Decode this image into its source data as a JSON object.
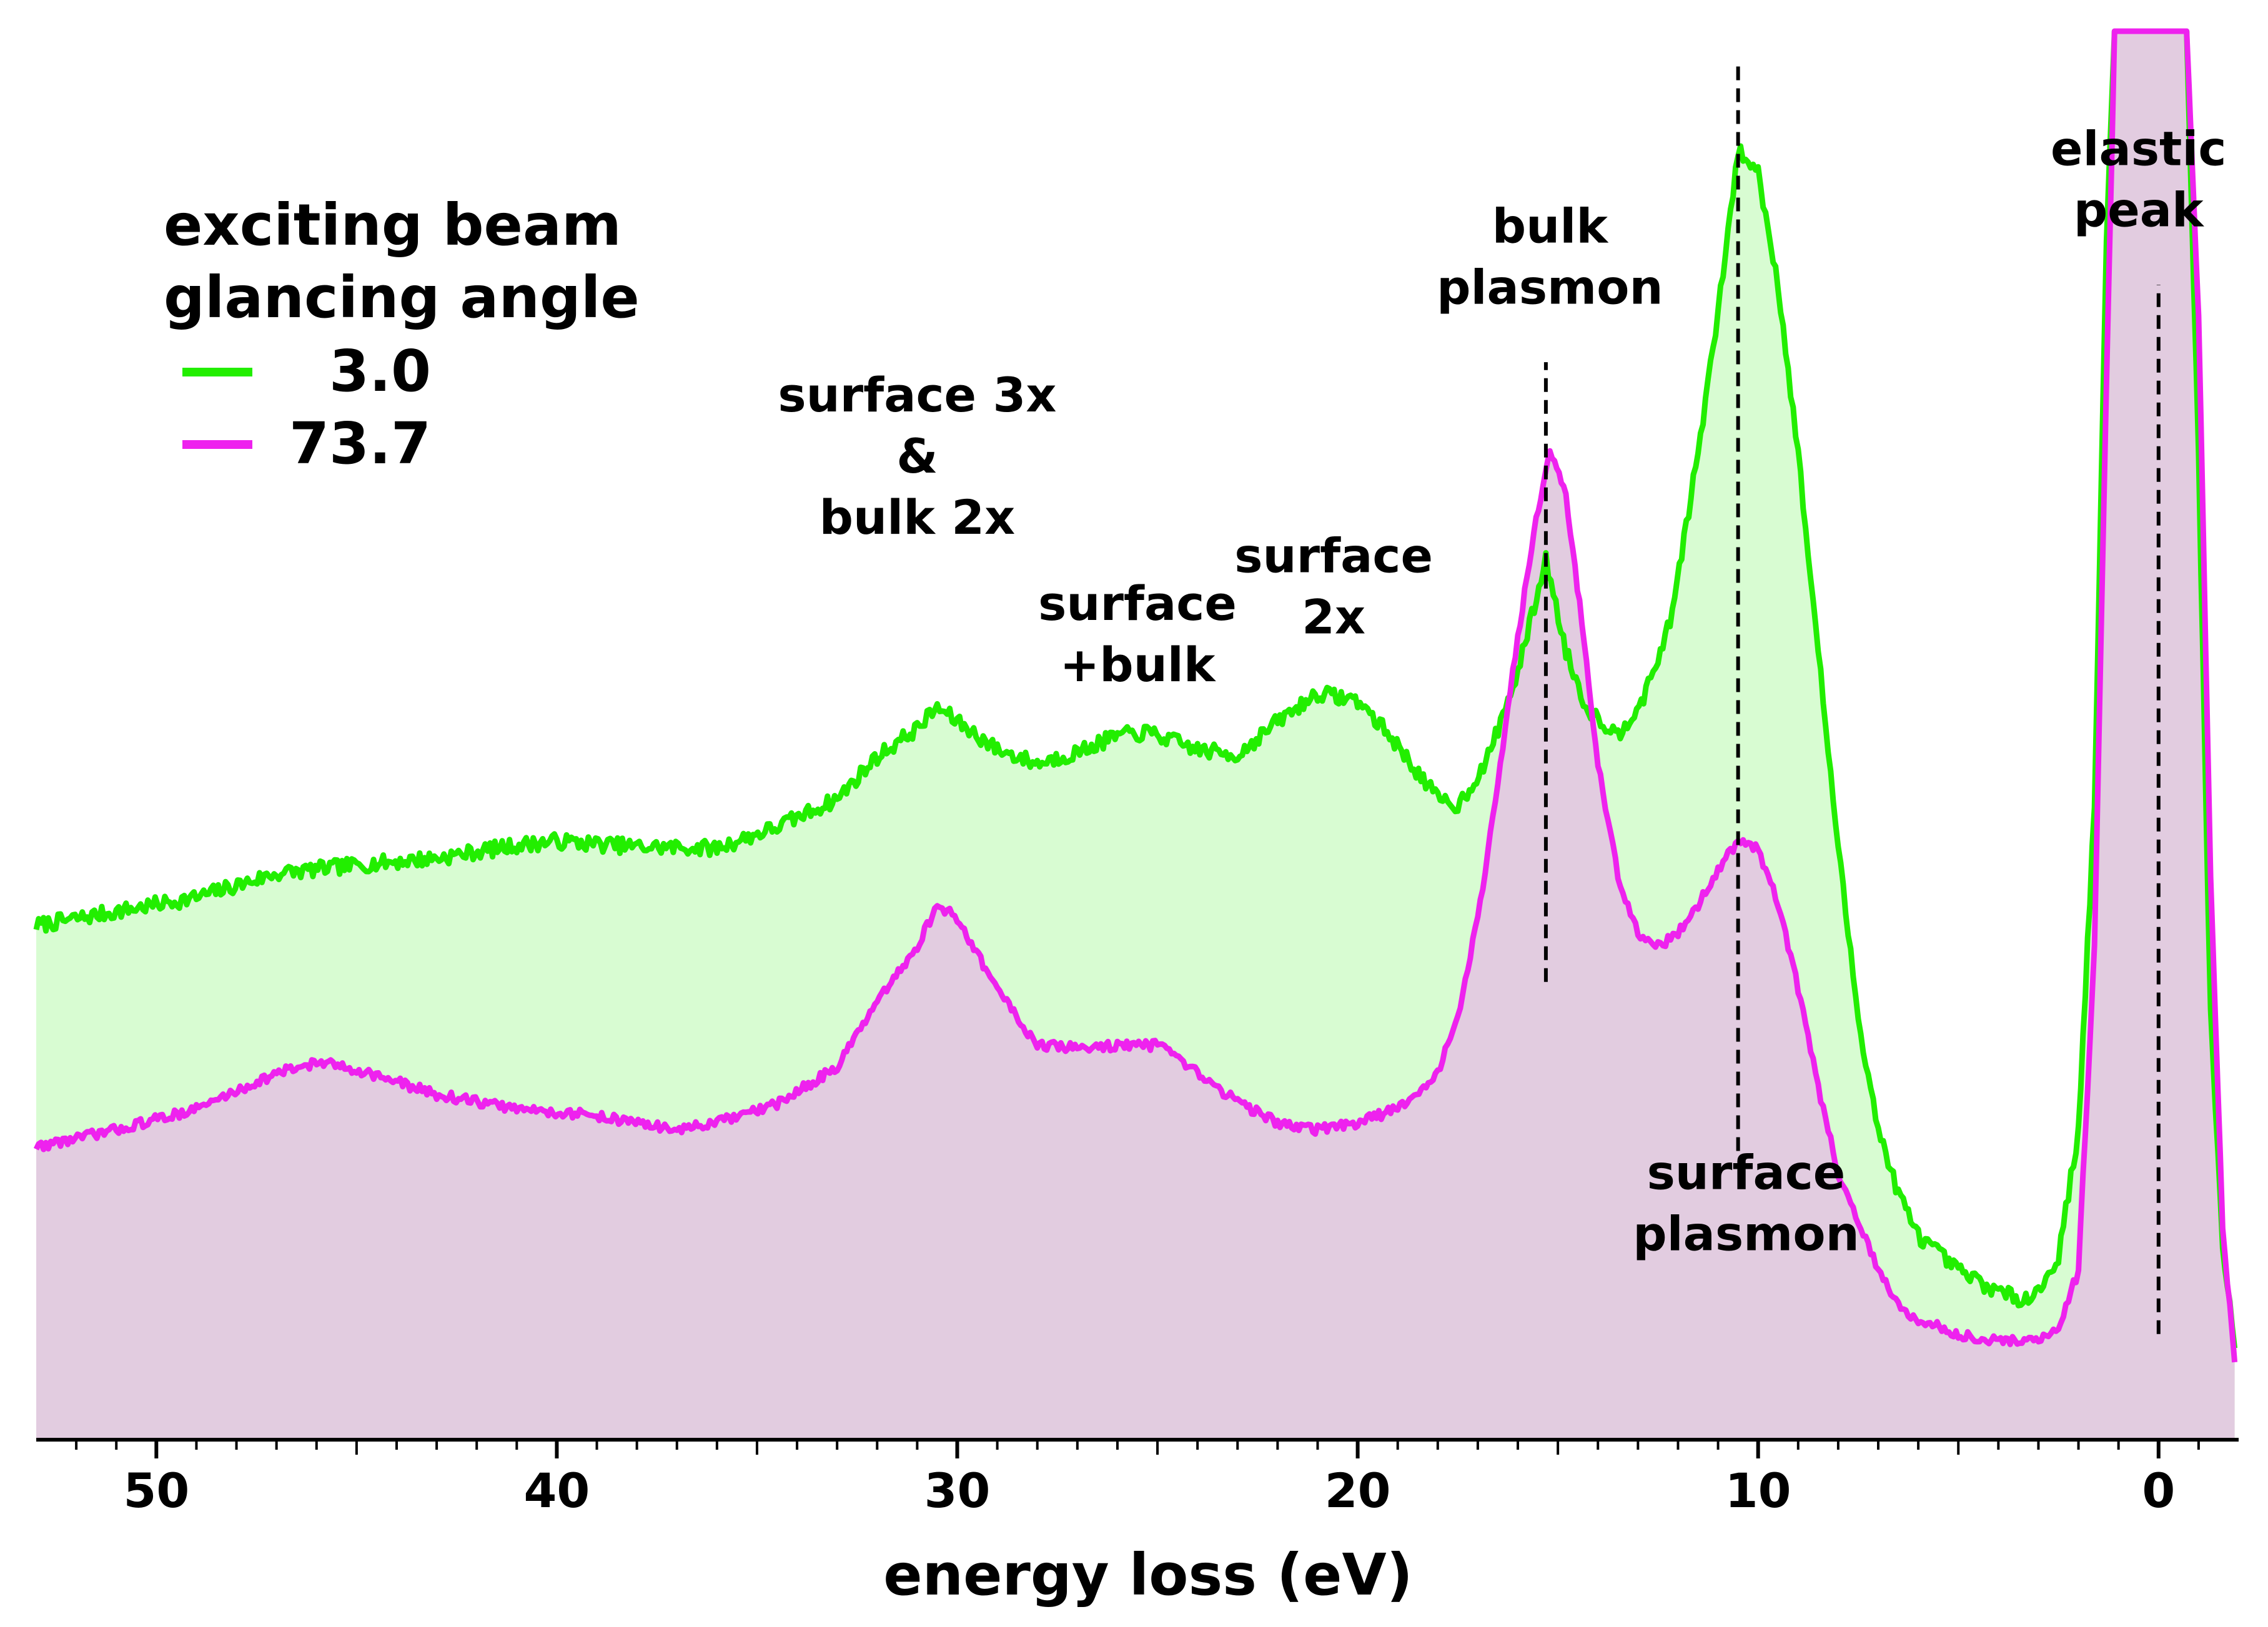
{
  "chart_data": {
    "type": "area",
    "title": "",
    "xlabel": "energy loss (eV)",
    "ylabel": "",
    "xlim": [
      53,
      -2
    ],
    "ylim": [
      0,
      100
    ],
    "x_reversed": true,
    "grid": false,
    "xticks": [
      50,
      40,
      30,
      20,
      10,
      0
    ],
    "xtick_labels": [
      "50",
      "40",
      "30",
      "20",
      "10",
      "0"
    ],
    "legend": {
      "title": [
        "exciting beam",
        "glancing angle"
      ],
      "position": "top-left",
      "entries": [
        {
          "label": "3.0",
          "color": "#22ee00"
        },
        {
          "label": "73.7",
          "color": "#ee22ee"
        }
      ]
    },
    "series": [
      {
        "name": "3.0",
        "line_color": "#22ee00",
        "fill_color": "#d8fcd2",
        "points": [
          [
            53,
            36.5
          ],
          [
            51,
            37.5
          ],
          [
            49,
            38.5
          ],
          [
            47,
            40.2
          ],
          [
            45,
            40.8
          ],
          [
            43,
            41.3
          ],
          [
            41,
            42.2
          ],
          [
            40,
            42.5
          ],
          [
            38,
            42.1
          ],
          [
            36,
            42.0
          ],
          [
            34.5,
            43.5
          ],
          [
            33,
            45.5
          ],
          [
            32,
            48.5
          ],
          [
            31,
            50.5
          ],
          [
            30.5,
            52.0
          ],
          [
            30,
            51.0
          ],
          [
            29,
            49.0
          ],
          [
            28,
            48.0
          ],
          [
            27,
            48.8
          ],
          [
            26,
            50.0
          ],
          [
            25.2,
            50.2
          ],
          [
            24,
            49.0
          ],
          [
            23,
            48.6
          ],
          [
            22,
            51.0
          ],
          [
            21,
            53.0
          ],
          [
            20,
            52.5
          ],
          [
            19.2,
            50.0
          ],
          [
            18,
            45.5
          ],
          [
            17.5,
            45.0
          ],
          [
            16.8,
            48.0
          ],
          [
            16,
            54.5
          ],
          [
            15.3,
            62.5
          ],
          [
            14.8,
            56.0
          ],
          [
            14.3,
            52.0
          ],
          [
            13.5,
            50.0
          ],
          [
            12.8,
            53.0
          ],
          [
            12.2,
            58.0
          ],
          [
            11.5,
            70.0
          ],
          [
            11.0,
            80.0
          ],
          [
            10.5,
            91.5
          ],
          [
            10.0,
            90.0
          ],
          [
            9.5,
            82.0
          ],
          [
            9.0,
            70.0
          ],
          [
            8.5,
            56.0
          ],
          [
            8.0,
            42.0
          ],
          [
            7.5,
            30.0
          ],
          [
            7.0,
            22.0
          ],
          [
            6.5,
            17.5
          ],
          [
            6.0,
            14.5
          ],
          [
            5.0,
            12.0
          ],
          [
            4.0,
            10.5
          ],
          [
            3.5,
            10.0
          ],
          [
            3.0,
            10.5
          ],
          [
            2.5,
            13.0
          ],
          [
            2.0,
            22.0
          ],
          [
            1.6,
            45.0
          ],
          [
            1.3,
            85.0
          ],
          [
            1.1,
            100.0
          ],
          [
            -0.7,
            100.0
          ],
          [
            -1.0,
            70.0
          ],
          [
            -1.3,
            30.0
          ],
          [
            -1.6,
            14.0
          ],
          [
            -1.9,
            6.5
          ]
        ]
      },
      {
        "name": "73.7",
        "line_color": "#ee22ee",
        "fill_color": "#e2cce0",
        "points": [
          [
            53,
            20.8
          ],
          [
            51,
            22.0
          ],
          [
            49,
            23.5
          ],
          [
            47,
            26.0
          ],
          [
            46,
            26.8
          ],
          [
            45,
            26.3
          ],
          [
            43,
            24.5
          ],
          [
            41,
            23.5
          ],
          [
            39,
            23.0
          ],
          [
            37,
            22.0
          ],
          [
            36,
            22.5
          ],
          [
            34.5,
            23.8
          ],
          [
            33,
            26.5
          ],
          [
            32,
            31.0
          ],
          [
            31,
            35.0
          ],
          [
            30.5,
            38.0
          ],
          [
            30.0,
            37.0
          ],
          [
            29,
            32.0
          ],
          [
            28,
            28.0
          ],
          [
            27,
            27.8
          ],
          [
            26,
            28.0
          ],
          [
            25.0,
            28.0
          ],
          [
            24,
            26.0
          ],
          [
            23,
            24.0
          ],
          [
            22,
            22.5
          ],
          [
            21,
            22.0
          ],
          [
            20,
            22.5
          ],
          [
            19,
            23.5
          ],
          [
            18,
            26.0
          ],
          [
            17.5,
            30.0
          ],
          [
            17.0,
            37.0
          ],
          [
            16.5,
            46.5
          ],
          [
            16.0,
            57.0
          ],
          [
            15.6,
            64.5
          ],
          [
            15.2,
            70.5
          ],
          [
            14.8,
            67.0
          ],
          [
            14.4,
            58.0
          ],
          [
            14.0,
            48.0
          ],
          [
            13.5,
            40.0
          ],
          [
            13.0,
            36.0
          ],
          [
            12.5,
            35.0
          ],
          [
            12.0,
            36.0
          ],
          [
            11.5,
            38.0
          ],
          [
            11.0,
            40.5
          ],
          [
            10.5,
            42.5
          ],
          [
            10.0,
            42.0
          ],
          [
            9.5,
            38.0
          ],
          [
            9.0,
            32.0
          ],
          [
            8.5,
            25.0
          ],
          [
            8.0,
            19.0
          ],
          [
            7.5,
            15.5
          ],
          [
            7.0,
            12.0
          ],
          [
            6.5,
            9.5
          ],
          [
            6.0,
            8.5
          ],
          [
            5.0,
            7.5
          ],
          [
            4.0,
            7.0
          ],
          [
            3.0,
            7.0
          ],
          [
            2.5,
            8.0
          ],
          [
            2.0,
            12.0
          ],
          [
            1.6,
            35.0
          ],
          [
            1.3,
            75.0
          ],
          [
            1.1,
            100.0
          ],
          [
            -0.7,
            100.0
          ],
          [
            -1.0,
            80.0
          ],
          [
            -1.3,
            40.0
          ],
          [
            -1.6,
            15.0
          ],
          [
            -1.9,
            5.5
          ]
        ]
      }
    ],
    "reference_lines": [
      {
        "x": 15.3,
        "y_from": 32.5,
        "y_to": 76.5
      },
      {
        "x": 10.5,
        "y_from": 20.5,
        "y_to": 97.5
      },
      {
        "x": 0.0,
        "y_from": 7.5,
        "y_to": 82.0
      }
    ],
    "annotations": [
      {
        "lines": [
          "surface 3x",
          "&",
          "bulk 2x"
        ],
        "x": 31.0,
        "y": 73.0
      },
      {
        "lines": [
          "surface",
          "+bulk"
        ],
        "x": 25.5,
        "y": 58.2
      },
      {
        "lines": [
          "surface",
          "2x"
        ],
        "x": 20.6,
        "y": 61.6
      },
      {
        "lines": [
          "bulk",
          "plasmon"
        ],
        "x": 15.2,
        "y": 85.0
      },
      {
        "lines": [
          "surface",
          "plasmon"
        ],
        "x": 10.3,
        "y": 17.8
      },
      {
        "lines": [
          "elastic",
          "peak"
        ],
        "x": 0.5,
        "y": 90.5
      }
    ]
  }
}
